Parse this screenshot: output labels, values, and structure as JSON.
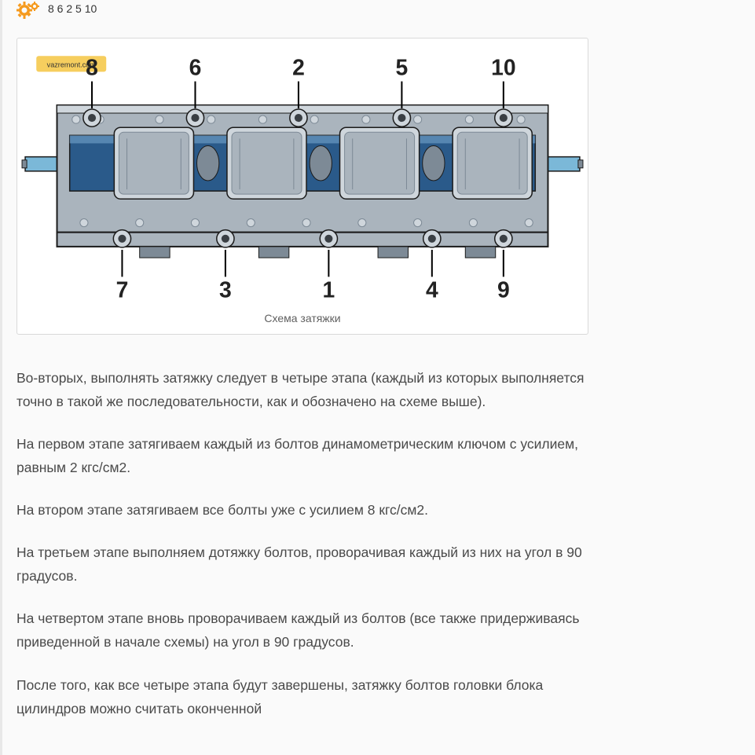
{
  "top_numbers": "8 6 2 5 10",
  "caption": "Схема затяжки",
  "diagram": {
    "top_labels": [
      "8",
      "6",
      "2",
      "5",
      "10"
    ],
    "bottom_labels": [
      "7",
      "3",
      "1",
      "4",
      "9"
    ],
    "top_x": [
      90,
      220,
      350,
      480,
      608
    ],
    "bottom_x": [
      128,
      258,
      388,
      518,
      608
    ],
    "label_fontsize": 28,
    "watermark": "vazremont.com",
    "colors": {
      "body_main": "#aab4bd",
      "body_dark": "#7d8a96",
      "body_light": "#cfd6dc",
      "deep_blue": "#2a5a8a",
      "mid_blue": "#6a99c2",
      "outline": "#1c1c1c",
      "axle": "#7bb8d8",
      "bolt_hole": "#3a3f44"
    }
  },
  "paragraphs": [
    "Во-вторых, выполнять затяжку следует в четыре этапа (каждый из которых выполняется точно в такой же последовательности, как и обозначено на схеме выше).",
    "На первом этапе затягиваем каждый из болтов динамометрическим ключом с усилием, равным 2 кгс/см2.",
    "На втором этапе затягиваем все болты уже с усилием 8 кгс/см2.",
    "На третьем этапе выполняем дотяжку болтов, проворачивая каждый из них на угол в 90 градусов.",
    "На четвертом этапе вновь проворачиваем каждый из болтов (все также придерживаясь приведенной в начале схемы) на угол в 90 градусов.",
    "После того, как все четыре этапа будут завершены, затяжку болтов головки блока цилиндров можно считать оконченной"
  ]
}
